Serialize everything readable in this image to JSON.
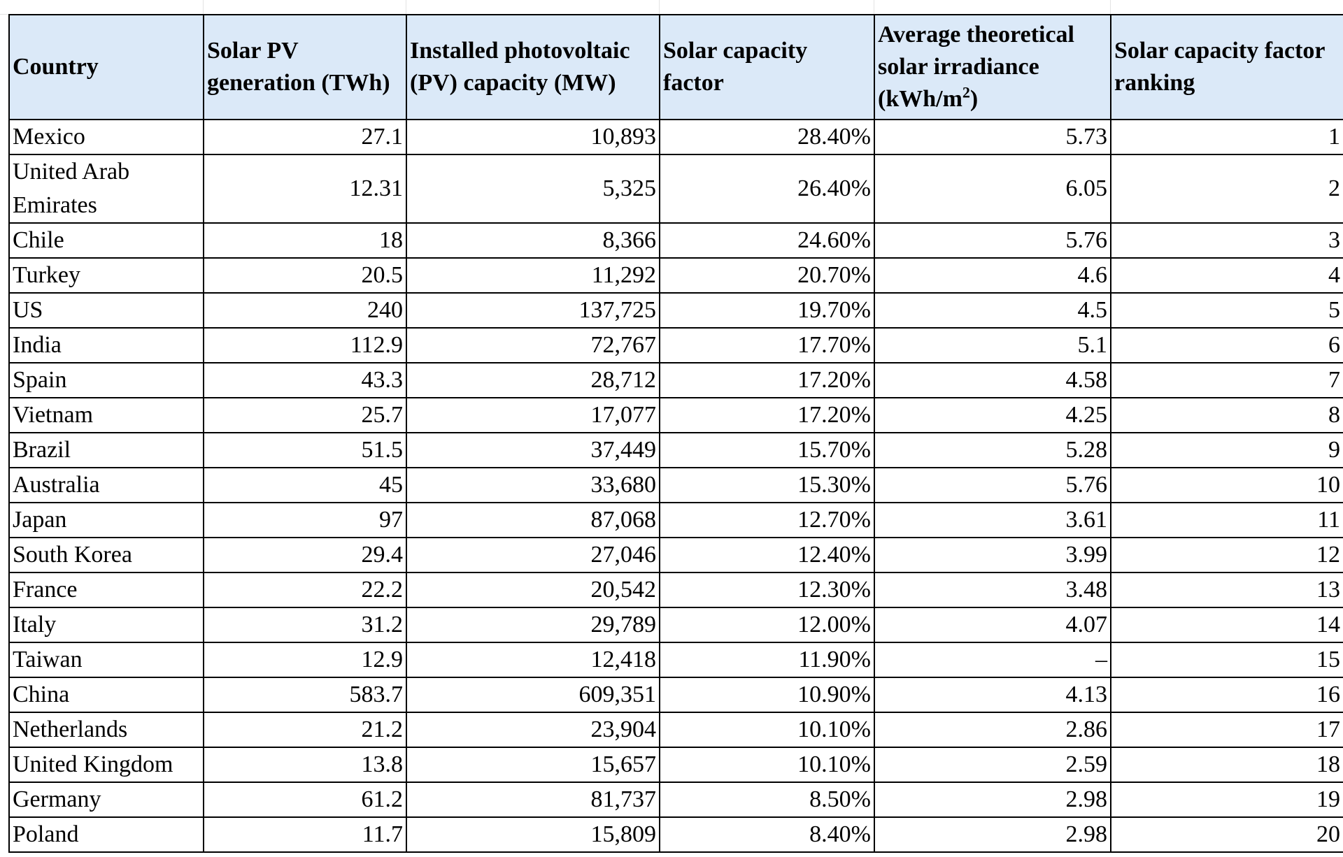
{
  "table": {
    "headers": [
      "Country",
      "Solar PV generation (TWh)",
      "Installed photovoltaic (PV) capacity (MW)",
      "Solar capacity factor",
      "Average theoretical solar irradiance (kWh/m²)",
      "Solar capacity factor ranking"
    ],
    "header_parts": {
      "irradiance_main": "Average theoretical solar irradiance (kWh/m",
      "irradiance_sup": "2",
      "irradiance_tail": ")"
    },
    "rows": [
      [
        "Mexico",
        "27.1",
        "10,893",
        "28.40%",
        "5.73",
        "1"
      ],
      [
        "United Arab Emirates",
        "12.31",
        "5,325",
        "26.40%",
        "6.05",
        "2"
      ],
      [
        "Chile",
        "18",
        "8,366",
        "24.60%",
        "5.76",
        "3"
      ],
      [
        "Turkey",
        "20.5",
        "11,292",
        "20.70%",
        "4.6",
        "4"
      ],
      [
        "US",
        "240",
        "137,725",
        "19.70%",
        "4.5",
        "5"
      ],
      [
        "India",
        "112.9",
        "72,767",
        "17.70%",
        "5.1",
        "6"
      ],
      [
        "Spain",
        "43.3",
        "28,712",
        "17.20%",
        "4.58",
        "7"
      ],
      [
        "Vietnam",
        "25.7",
        "17,077",
        "17.20%",
        "4.25",
        "8"
      ],
      [
        "Brazil",
        "51.5",
        "37,449",
        "15.70%",
        "5.28",
        "9"
      ],
      [
        "Australia",
        "45",
        "33,680",
        "15.30%",
        "5.76",
        "10"
      ],
      [
        "Japan",
        "97",
        "87,068",
        "12.70%",
        "3.61",
        "11"
      ],
      [
        "South Korea",
        "29.4",
        "27,046",
        "12.40%",
        "3.99",
        "12"
      ],
      [
        "France",
        "22.2",
        "20,542",
        "12.30%",
        "3.48",
        "13"
      ],
      [
        "Italy",
        "31.2",
        "29,789",
        "12.00%",
        "4.07",
        "14"
      ],
      [
        "Taiwan",
        "12.9",
        "12,418",
        "11.90%",
        "–",
        "15"
      ],
      [
        "China",
        "583.7",
        "609,351",
        "10.90%",
        "4.13",
        "16"
      ],
      [
        "Netherlands",
        "21.2",
        "23,904",
        "10.10%",
        "2.86",
        "17"
      ],
      [
        "United Kingdom",
        "13.8",
        "15,657",
        "10.10%",
        "2.59",
        "18"
      ],
      [
        "Germany",
        "61.2",
        "81,737",
        "8.50%",
        "2.98",
        "19"
      ],
      [
        "Poland",
        "11.7",
        "15,809",
        "8.40%",
        "2.98",
        "20"
      ]
    ]
  },
  "colors": {
    "header_background": "#dbe9f8",
    "border": "#000000"
  }
}
